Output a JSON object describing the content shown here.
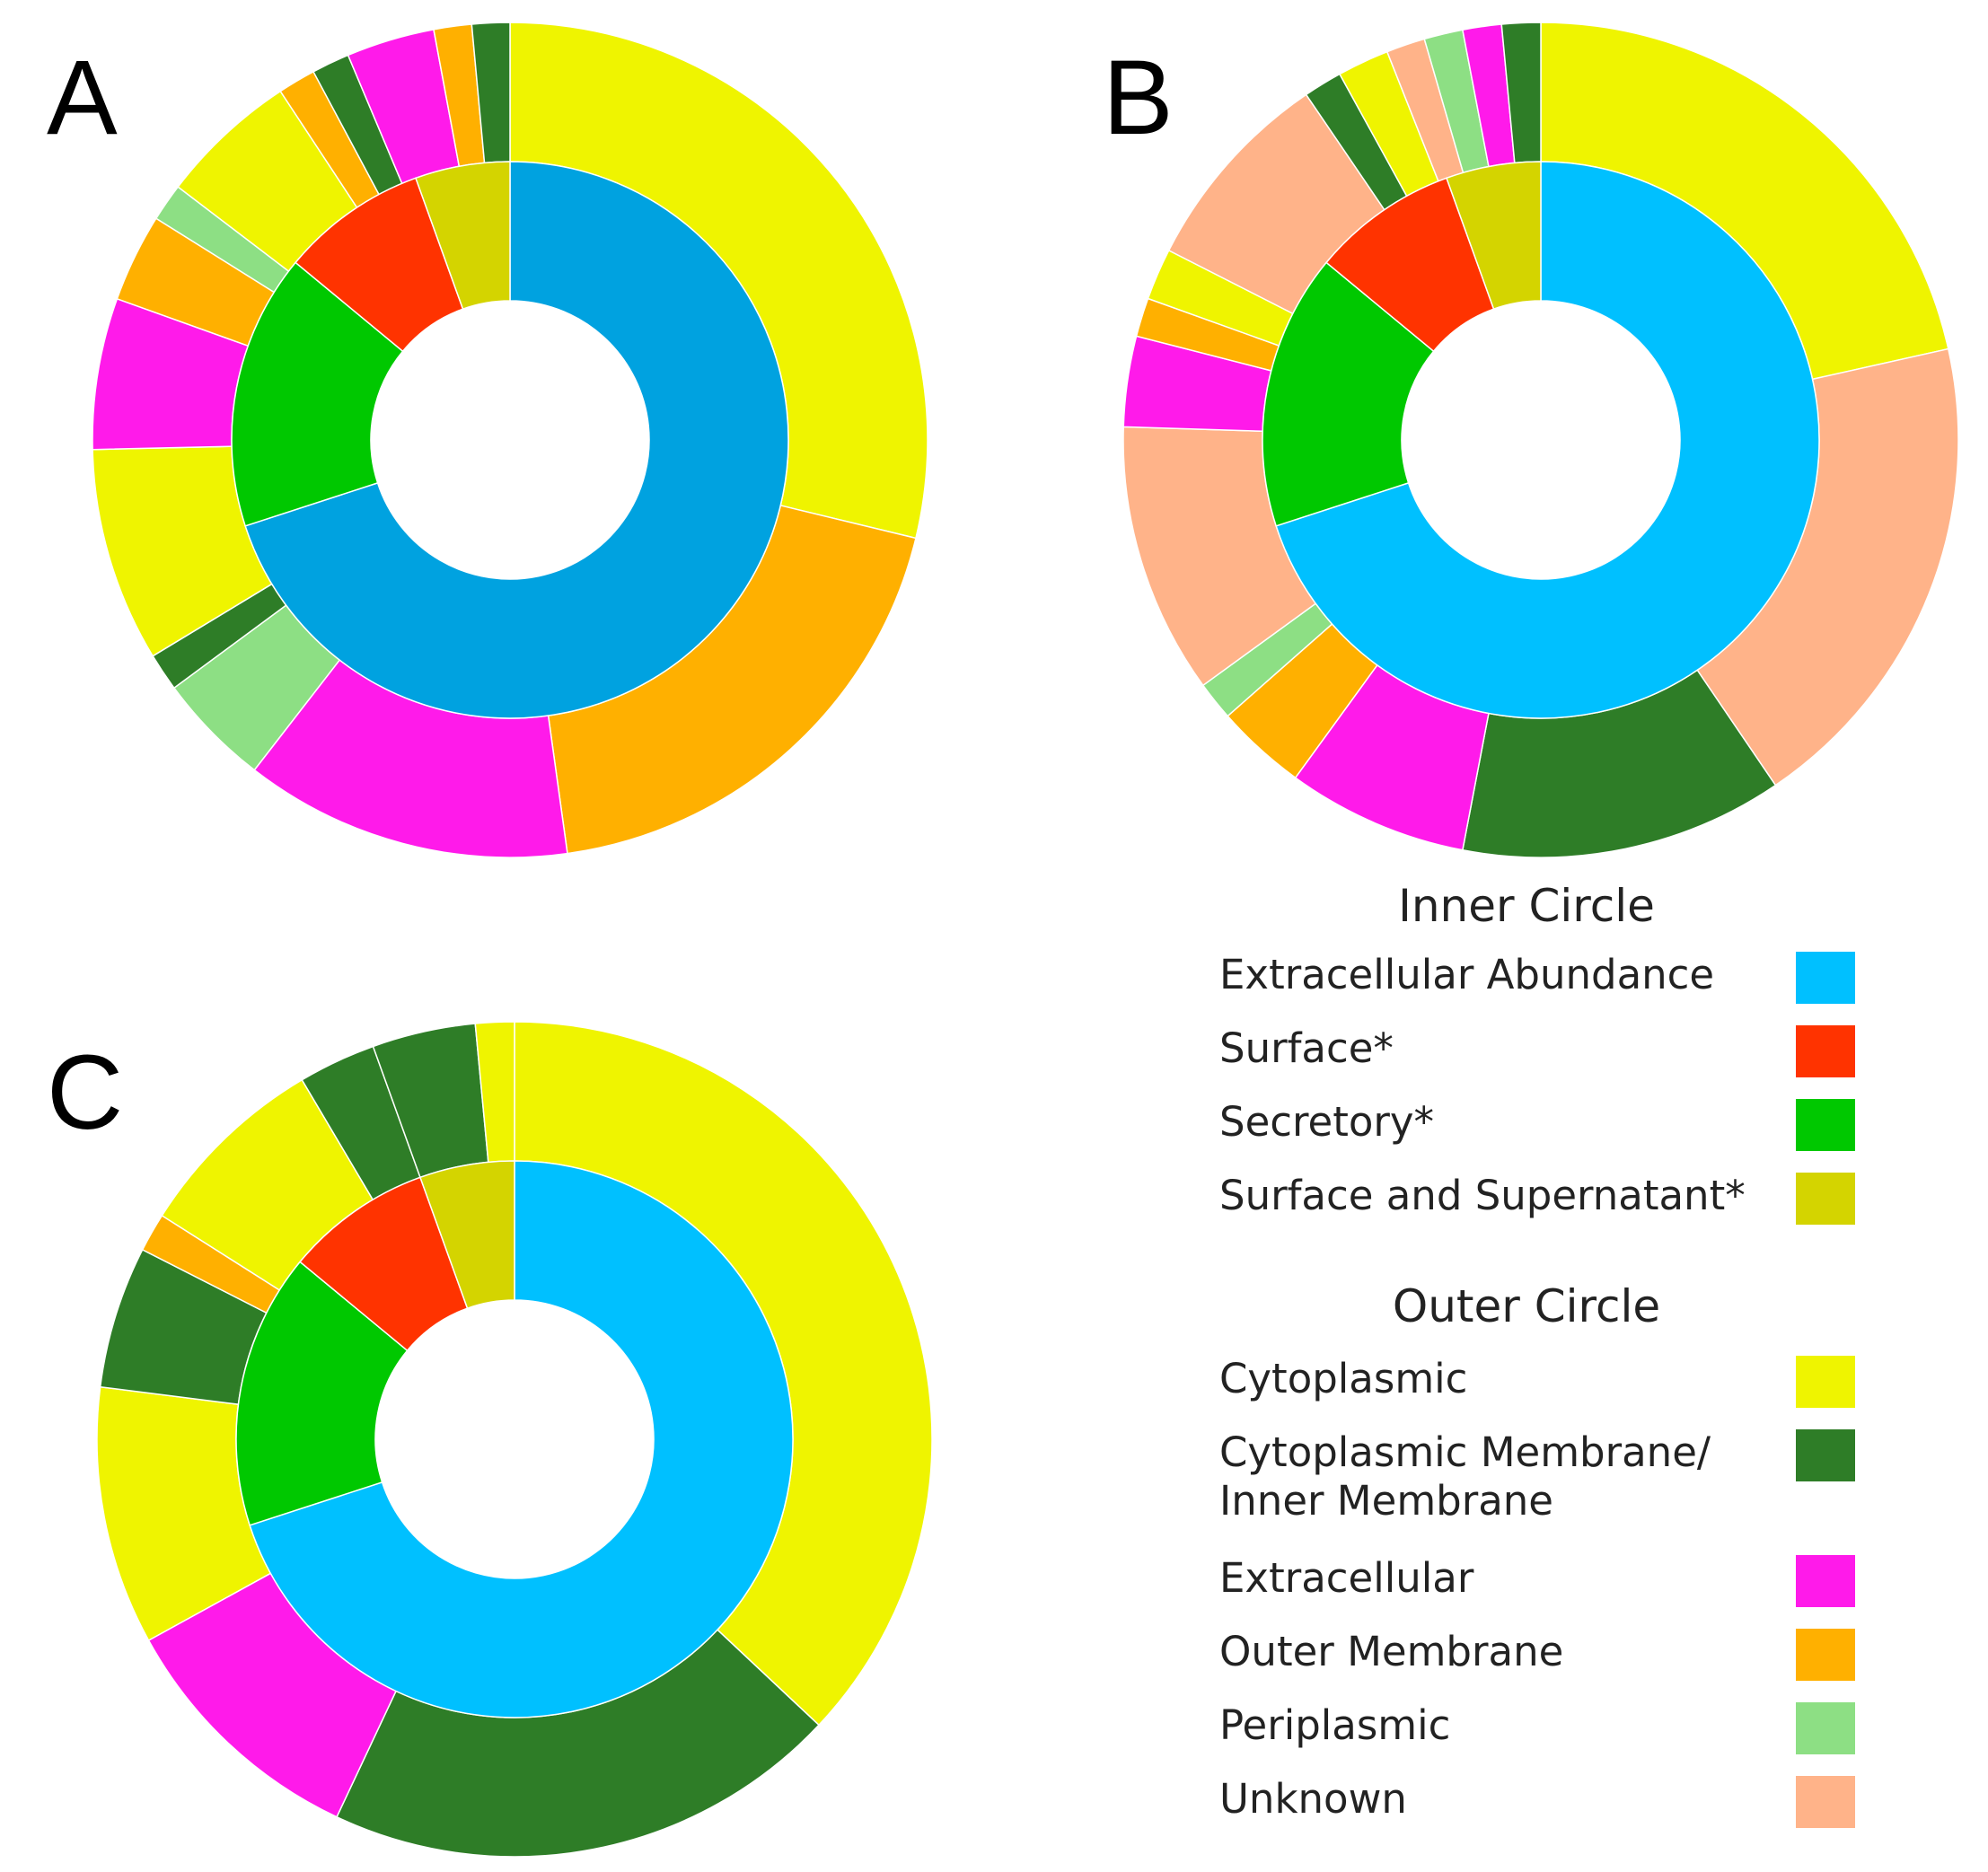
{
  "figure_labels": {
    "a": "A",
    "b": "B",
    "c": "C"
  },
  "chart_data": [
    {
      "type": "pie",
      "subtype": "nested-donut",
      "panel": "A",
      "title": "A",
      "inner": [
        {
          "category": "Extracellular Abundance",
          "value": 70,
          "color": "#00a2e0"
        },
        {
          "category": "Secretory*",
          "value": 16,
          "color": "#00c800"
        },
        {
          "category": "Surface*",
          "value": 8.5,
          "color": "#ff3300"
        },
        {
          "category": "Surface and Supernatant*",
          "value": 5.5,
          "color": "#d4d400"
        }
      ],
      "outer": [
        {
          "category": "Cytoplasmic",
          "value": 29.5,
          "color": "#eff400"
        },
        {
          "category": "Outer Membrane",
          "value": 19.5,
          "color": "#ffb000"
        },
        {
          "category": "Extracellular",
          "value": 13,
          "color": "#ff1aea"
        },
        {
          "category": "Periplasmic",
          "value": 4.5,
          "color": "#8ddf84"
        },
        {
          "category": "Cytoplasmic Membrane/ Inner Membrane",
          "value": 1.5,
          "color": "#2e7d27"
        },
        {
          "category": "Cytoplasmic",
          "value": 8.5,
          "color": "#eff400"
        },
        {
          "category": "Extracellular",
          "value": 6,
          "color": "#ff1aea"
        },
        {
          "category": "Outer Membrane",
          "value": 3.5,
          "color": "#ffb000"
        },
        {
          "category": "Periplasmic",
          "value": 1.5,
          "color": "#8ddf84"
        },
        {
          "category": "Cytoplasmic",
          "value": 5.5,
          "color": "#eff400"
        },
        {
          "category": "Outer Membrane",
          "value": 1.5,
          "color": "#ffb000"
        },
        {
          "category": "Cytoplasmic Membrane/ Inner Membrane",
          "value": 1.5,
          "color": "#2e7d27"
        },
        {
          "category": "Extracellular",
          "value": 3.5,
          "color": "#ff1aea"
        },
        {
          "category": "Outer Membrane",
          "value": 1.5,
          "color": "#ffb000"
        },
        {
          "category": "Cytoplasmic Membrane/ Inner Membrane",
          "value": 1.5,
          "color": "#2e7d27"
        }
      ]
    },
    {
      "type": "pie",
      "subtype": "nested-donut",
      "panel": "B",
      "title": "B",
      "inner": [
        {
          "category": "Extracellular Abundance",
          "value": 70,
          "color": "#00c0ff"
        },
        {
          "category": "Secretory*",
          "value": 16,
          "color": "#00c800"
        },
        {
          "category": "Surface*",
          "value": 8.5,
          "color": "#ff3300"
        },
        {
          "category": "Surface and Supernatant*",
          "value": 5.5,
          "color": "#d4d400"
        }
      ],
      "outer": [
        {
          "category": "Cytoplasmic",
          "value": 21.5,
          "color": "#eff400"
        },
        {
          "category": "Unknown",
          "value": 19,
          "color": "#ffb389"
        },
        {
          "category": "Cytoplasmic Membrane/ Inner Membrane",
          "value": 12.5,
          "color": "#2e7d27"
        },
        {
          "category": "Extracellular",
          "value": 7,
          "color": "#ff1aea"
        },
        {
          "category": "Outer Membrane",
          "value": 3.5,
          "color": "#ffb000"
        },
        {
          "category": "Periplasmic",
          "value": 1.5,
          "color": "#8ddf84"
        },
        {
          "category": "Unknown",
          "value": 10.5,
          "color": "#ffb389"
        },
        {
          "category": "Extracellular",
          "value": 3.5,
          "color": "#ff1aea"
        },
        {
          "category": "Outer Membrane",
          "value": 1.5,
          "color": "#ffb000"
        },
        {
          "category": "Cytoplasmic",
          "value": 2,
          "color": "#eff400"
        },
        {
          "category": "Unknown",
          "value": 8,
          "color": "#ffb389"
        },
        {
          "category": "Cytoplasmic Membrane/ Inner Membrane",
          "value": 1.5,
          "color": "#2e7d27"
        },
        {
          "category": "Cytoplasmic",
          "value": 2,
          "color": "#eff400"
        },
        {
          "category": "Unknown",
          "value": 1.5,
          "color": "#ffb389"
        },
        {
          "category": "Periplasmic",
          "value": 1.5,
          "color": "#8ddf84"
        },
        {
          "category": "Extracellular",
          "value": 1.5,
          "color": "#ff1aea"
        },
        {
          "category": "Cytoplasmic Membrane/ Inner Membrane",
          "value": 1.5,
          "color": "#2e7d27"
        }
      ]
    },
    {
      "type": "pie",
      "subtype": "nested-donut",
      "panel": "C",
      "title": "C",
      "inner": [
        {
          "category": "Extracellular Abundance",
          "value": 70,
          "color": "#00c0ff"
        },
        {
          "category": "Secretory*",
          "value": 16,
          "color": "#00c800"
        },
        {
          "category": "Surface*",
          "value": 8.5,
          "color": "#ff3300"
        },
        {
          "category": "Surface and Supernatant*",
          "value": 5.5,
          "color": "#d4d400"
        }
      ],
      "outer": [
        {
          "category": "Cytoplasmic",
          "value": 37,
          "color": "#eff400"
        },
        {
          "category": "Cytoplasmic Membrane/ Inner Membrane",
          "value": 20,
          "color": "#2e7d27"
        },
        {
          "category": "Extracellular",
          "value": 10,
          "color": "#ff1aea"
        },
        {
          "category": "Cytoplasmic",
          "value": 10,
          "color": "#eff400"
        },
        {
          "category": "Cytoplasmic Membrane/ Inner Membrane",
          "value": 5.5,
          "color": "#2e7d27"
        },
        {
          "category": "Outer Membrane",
          "value": 1.5,
          "color": "#ffb000"
        },
        {
          "category": "Cytoplasmic",
          "value": 7.5,
          "color": "#eff400"
        },
        {
          "category": "Cytoplasmic Membrane/ Inner Membrane",
          "value": 3,
          "color": "#2e7d27"
        },
        {
          "category": "Cytoplasmic Membrane/ Inner Membrane",
          "value": 4,
          "color": "#2e7d27"
        },
        {
          "category": "Cytoplasmic",
          "value": 1.5,
          "color": "#eff400"
        }
      ]
    }
  ],
  "legend": {
    "inner_title": "Inner Circle",
    "inner": [
      {
        "label": "Extracellular Abundance",
        "color": "#00c0ff"
      },
      {
        "label": "Surface*",
        "color": "#ff3300"
      },
      {
        "label": "Secretory*",
        "color": "#00c800"
      },
      {
        "label": "Surface and Supernatant*",
        "color": "#d4d400"
      }
    ],
    "outer_title": "Outer Circle",
    "outer": [
      {
        "label": "Cytoplasmic",
        "color": "#eff400"
      },
      {
        "label": "Cytoplasmic Membrane/",
        "label2": "Inner Membrane",
        "color": "#2e7d27"
      },
      {
        "label": "Extracellular",
        "color": "#ff1aea"
      },
      {
        "label": "Outer Membrane",
        "color": "#ffb000"
      },
      {
        "label": "Periplasmic",
        "color": "#8ddf84"
      },
      {
        "label": "Unknown",
        "color": "#ffb389"
      }
    ]
  }
}
